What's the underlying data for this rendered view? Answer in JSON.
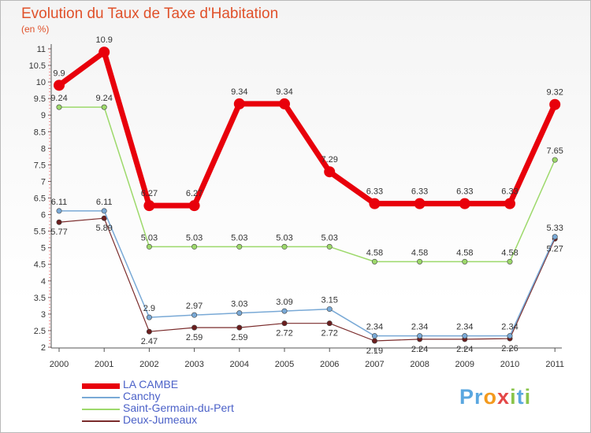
{
  "title": "Evolution du Taux de Taxe d'Habitation",
  "subtitle": "(en %)",
  "logo": {
    "text": "Proxiti",
    "letters": [
      "P",
      "r",
      "o",
      "x",
      "i",
      "t",
      "i"
    ],
    "colors": [
      "#5aa7e0",
      "#5aa7e0",
      "#f39a1e",
      "#e44848",
      "#8ac44b",
      "#5aa7e0",
      "#8ac44b"
    ]
  },
  "chart_data": {
    "type": "line",
    "x": [
      "2000",
      "2001",
      "2002",
      "2003",
      "2004",
      "2005",
      "2006",
      "2007",
      "2008",
      "2009",
      "2010",
      "2011"
    ],
    "ylim": [
      2,
      11
    ],
    "yticks": [
      "2",
      "2.5",
      "3",
      "3.5",
      "4",
      "4.5",
      "5",
      "5.5",
      "6",
      "6.5",
      "7",
      "7.5",
      "8",
      "8.5",
      "9",
      "9.5",
      "10",
      "10.5",
      "11"
    ],
    "grid": false,
    "legend_position": "bottom-left",
    "series": [
      {
        "name": "LA CAMBE",
        "color": "#e8000b",
        "values": [
          9.9,
          10.9,
          6.27,
          6.27,
          9.34,
          9.34,
          7.29,
          6.33,
          6.33,
          6.33,
          6.33,
          9.32
        ],
        "labels": [
          "9.9",
          "10.9",
          "6.27",
          "6.27",
          "9.34",
          "9.34",
          "7.29",
          "6.33",
          "6.33",
          "6.33",
          "6.33",
          "9.32"
        ]
      },
      {
        "name": "Canchy",
        "color": "#79a9d6",
        "values": [
          6.11,
          6.11,
          2.9,
          2.97,
          3.03,
          3.09,
          3.15,
          2.34,
          2.34,
          2.34,
          2.34,
          5.33
        ],
        "labels": [
          "6.11",
          "6.11",
          "2.9",
          "2.97",
          "3.03",
          "3.09",
          "3.15",
          "2.34",
          "2.34",
          "2.34",
          "2.34",
          "5.33"
        ]
      },
      {
        "name": "Saint-Germain-du-Pert",
        "color": "#9dd96b",
        "values": [
          9.24,
          9.24,
          5.03,
          5.03,
          5.03,
          5.03,
          5.03,
          4.58,
          4.58,
          4.58,
          4.58,
          7.65
        ],
        "labels": [
          "9.24",
          "9.24",
          "5.03",
          "5.03",
          "5.03",
          "5.03",
          "5.03",
          "4.58",
          "4.58",
          "4.58",
          "4.58",
          "7.65"
        ]
      },
      {
        "name": "Deux-Jumeaux",
        "color": "#7a2b2b",
        "values": [
          5.77,
          5.89,
          2.47,
          2.59,
          2.59,
          2.72,
          2.72,
          2.19,
          2.24,
          2.24,
          2.26,
          5.27
        ],
        "labels": [
          "5.77",
          "5.89",
          "2.47",
          "2.59",
          "2.59",
          "2.72",
          "2.72",
          "2.19",
          "2.24",
          "2.24",
          "2.26",
          "5.27"
        ]
      }
    ]
  }
}
